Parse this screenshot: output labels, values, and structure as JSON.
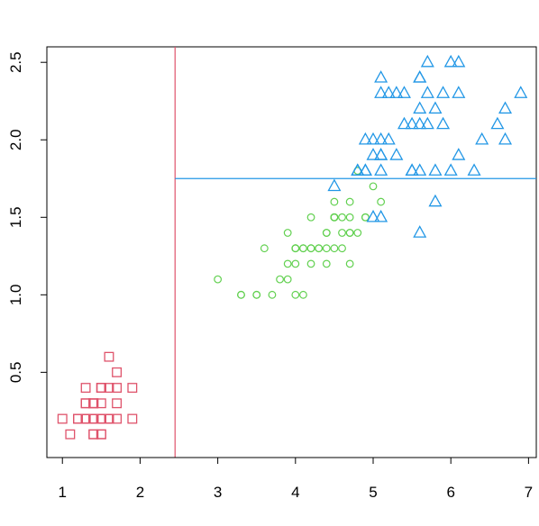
{
  "chart_data": {
    "type": "scatter",
    "title": "",
    "xlabel": "",
    "ylabel": "",
    "xlim": [
      0.8,
      7.1
    ],
    "ylim": [
      -0.05,
      2.6
    ],
    "x_ticks": [
      1,
      2,
      3,
      4,
      5,
      6,
      7
    ],
    "x_tick_labels": [
      "1",
      "2",
      "3",
      "4",
      "5",
      "6",
      "7"
    ],
    "y_ticks": [
      0.5,
      1.0,
      1.5,
      2.0,
      2.5
    ],
    "y_tick_labels": [
      "0.5",
      "1.0",
      "1.5",
      "2.0",
      "2.5"
    ],
    "grid": false,
    "legend": "none",
    "series": [
      {
        "marker": "square",
        "color": "#DF536B",
        "points": [
          [
            1.4,
            0.2
          ],
          [
            1.4,
            0.2
          ],
          [
            1.3,
            0.2
          ],
          [
            1.5,
            0.2
          ],
          [
            1.4,
            0.2
          ],
          [
            1.7,
            0.4
          ],
          [
            1.4,
            0.3
          ],
          [
            1.5,
            0.2
          ],
          [
            1.4,
            0.2
          ],
          [
            1.5,
            0.1
          ],
          [
            1.5,
            0.2
          ],
          [
            1.6,
            0.2
          ],
          [
            1.4,
            0.1
          ],
          [
            1.1,
            0.1
          ],
          [
            1.2,
            0.2
          ],
          [
            1.5,
            0.4
          ],
          [
            1.3,
            0.4
          ],
          [
            1.4,
            0.3
          ],
          [
            1.7,
            0.3
          ],
          [
            1.5,
            0.3
          ],
          [
            1.7,
            0.2
          ],
          [
            1.5,
            0.4
          ],
          [
            1.0,
            0.2
          ],
          [
            1.7,
            0.5
          ],
          [
            1.9,
            0.2
          ],
          [
            1.6,
            0.2
          ],
          [
            1.6,
            0.4
          ],
          [
            1.5,
            0.2
          ],
          [
            1.4,
            0.2
          ],
          [
            1.6,
            0.2
          ],
          [
            1.6,
            0.2
          ],
          [
            1.5,
            0.4
          ],
          [
            1.5,
            0.1
          ],
          [
            1.4,
            0.2
          ],
          [
            1.5,
            0.2
          ],
          [
            1.2,
            0.2
          ],
          [
            1.3,
            0.2
          ],
          [
            1.4,
            0.1
          ],
          [
            1.3,
            0.2
          ],
          [
            1.5,
            0.2
          ],
          [
            1.3,
            0.3
          ],
          [
            1.3,
            0.3
          ],
          [
            1.3,
            0.2
          ],
          [
            1.6,
            0.6
          ],
          [
            1.9,
            0.4
          ],
          [
            1.4,
            0.3
          ],
          [
            1.6,
            0.2
          ],
          [
            1.4,
            0.2
          ],
          [
            1.5,
            0.2
          ],
          [
            1.4,
            0.2
          ]
        ]
      },
      {
        "marker": "circle",
        "color": "#61D04F",
        "points": [
          [
            4.7,
            1.4
          ],
          [
            4.5,
            1.5
          ],
          [
            4.9,
            1.5
          ],
          [
            4.0,
            1.3
          ],
          [
            4.6,
            1.5
          ],
          [
            4.5,
            1.3
          ],
          [
            4.7,
            1.6
          ],
          [
            3.3,
            1.0
          ],
          [
            4.6,
            1.3
          ],
          [
            3.9,
            1.4
          ],
          [
            3.5,
            1.0
          ],
          [
            4.2,
            1.5
          ],
          [
            4.0,
            1.0
          ],
          [
            4.7,
            1.4
          ],
          [
            3.6,
            1.3
          ],
          [
            4.4,
            1.4
          ],
          [
            4.5,
            1.5
          ],
          [
            4.1,
            1.0
          ],
          [
            4.5,
            1.5
          ],
          [
            3.9,
            1.1
          ],
          [
            4.8,
            1.8
          ],
          [
            4.0,
            1.3
          ],
          [
            4.9,
            1.5
          ],
          [
            4.7,
            1.2
          ],
          [
            4.3,
            1.3
          ],
          [
            4.4,
            1.4
          ],
          [
            4.8,
            1.4
          ],
          [
            5.0,
            1.7
          ],
          [
            4.5,
            1.5
          ],
          [
            3.5,
            1.0
          ],
          [
            3.8,
            1.1
          ],
          [
            3.7,
            1.0
          ],
          [
            3.9,
            1.2
          ],
          [
            5.1,
            1.6
          ],
          [
            4.5,
            1.5
          ],
          [
            4.5,
            1.6
          ],
          [
            4.7,
            1.5
          ],
          [
            4.4,
            1.3
          ],
          [
            4.1,
            1.3
          ],
          [
            4.0,
            1.3
          ],
          [
            4.4,
            1.2
          ],
          [
            4.6,
            1.4
          ],
          [
            4.0,
            1.2
          ],
          [
            3.3,
            1.0
          ],
          [
            4.2,
            1.3
          ],
          [
            4.2,
            1.2
          ],
          [
            4.2,
            1.3
          ],
          [
            4.3,
            1.3
          ],
          [
            3.0,
            1.1
          ],
          [
            4.1,
            1.3
          ]
        ]
      },
      {
        "marker": "triangle",
        "color": "#2297E6",
        "points": [
          [
            6.0,
            2.5
          ],
          [
            5.1,
            1.9
          ],
          [
            5.9,
            2.1
          ],
          [
            5.6,
            1.8
          ],
          [
            5.8,
            2.2
          ],
          [
            6.6,
            2.1
          ],
          [
            4.5,
            1.7
          ],
          [
            6.3,
            1.8
          ],
          [
            5.8,
            1.8
          ],
          [
            6.1,
            2.5
          ],
          [
            5.1,
            2.0
          ],
          [
            5.3,
            1.9
          ],
          [
            5.5,
            2.1
          ],
          [
            5.0,
            2.0
          ],
          [
            5.1,
            2.4
          ],
          [
            5.3,
            2.3
          ],
          [
            5.5,
            1.8
          ],
          [
            6.7,
            2.2
          ],
          [
            6.9,
            2.3
          ],
          [
            5.0,
            1.5
          ],
          [
            5.7,
            2.3
          ],
          [
            4.9,
            2.0
          ],
          [
            6.7,
            2.0
          ],
          [
            4.9,
            1.8
          ],
          [
            5.7,
            2.1
          ],
          [
            6.0,
            1.8
          ],
          [
            4.8,
            1.8
          ],
          [
            4.9,
            1.8
          ],
          [
            5.6,
            2.1
          ],
          [
            5.8,
            1.6
          ],
          [
            6.1,
            1.9
          ],
          [
            6.4,
            2.0
          ],
          [
            5.6,
            2.2
          ],
          [
            5.1,
            1.5
          ],
          [
            5.6,
            1.4
          ],
          [
            6.1,
            2.3
          ],
          [
            5.6,
            2.4
          ],
          [
            5.5,
            1.8
          ],
          [
            4.8,
            1.8
          ],
          [
            5.4,
            2.1
          ],
          [
            5.6,
            2.4
          ],
          [
            5.1,
            2.3
          ],
          [
            5.1,
            1.9
          ],
          [
            5.9,
            2.3
          ],
          [
            5.7,
            2.5
          ],
          [
            5.2,
            2.3
          ],
          [
            5.0,
            1.9
          ],
          [
            5.2,
            2.0
          ],
          [
            5.4,
            2.3
          ],
          [
            5.1,
            1.8
          ]
        ]
      }
    ],
    "reference_lines": [
      {
        "orientation": "vertical",
        "value": 2.45,
        "color": "#DF536B"
      },
      {
        "orientation": "horizontal",
        "value": 1.75,
        "from": 2.45,
        "color": "#2297E6"
      }
    ]
  }
}
